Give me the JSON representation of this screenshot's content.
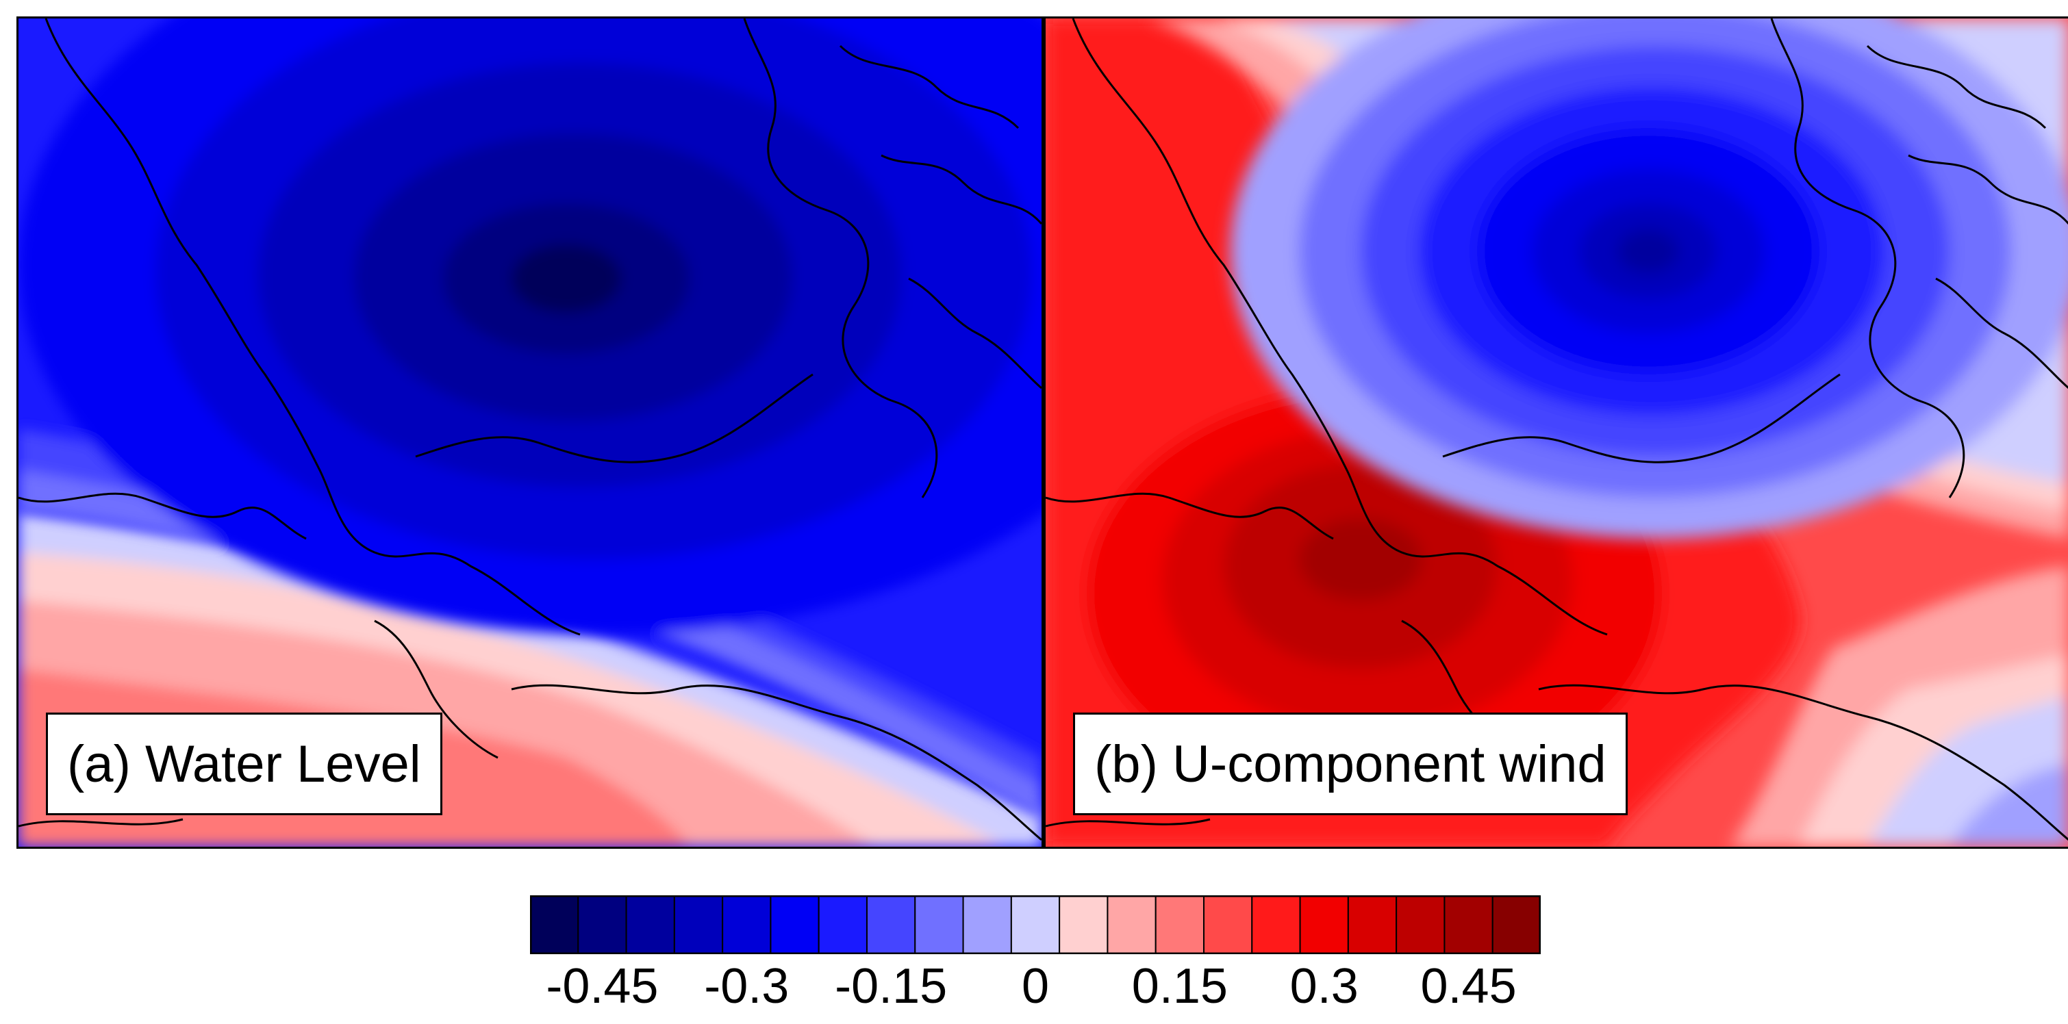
{
  "panels": [
    {
      "id": "a",
      "label": "(a) Water Level"
    },
    {
      "id": "b",
      "label": "(b) U-component wind"
    }
  ],
  "colorbar": {
    "levels": [
      -0.525,
      -0.475,
      -0.425,
      -0.375,
      -0.325,
      -0.275,
      -0.225,
      -0.175,
      -0.125,
      -0.075,
      -0.025,
      0.025,
      0.075,
      0.125,
      0.175,
      0.225,
      0.275,
      0.325,
      0.375,
      0.425,
      0.475,
      0.525
    ],
    "colors": [
      "#00005a",
      "#000080",
      "#00009e",
      "#0000bb",
      "#0000d8",
      "#0000f5",
      "#1a1aff",
      "#4545ff",
      "#7070ff",
      "#a0a0ff",
      "#cfcfff",
      "#ffd0d0",
      "#ffa6a6",
      "#ff7878",
      "#ff4a4a",
      "#ff1a1a",
      "#f20000",
      "#d80000",
      "#bd0000",
      "#a20000",
      "#870000",
      "#6b0000"
    ],
    "tick_values": [
      -0.45,
      -0.3,
      -0.15,
      0,
      0.15,
      0.3,
      0.45
    ],
    "tick_labels": [
      "-0.45",
      "-0.3",
      "-0.15",
      "0",
      "0.15",
      "0.3",
      "0.45"
    ]
  }
}
